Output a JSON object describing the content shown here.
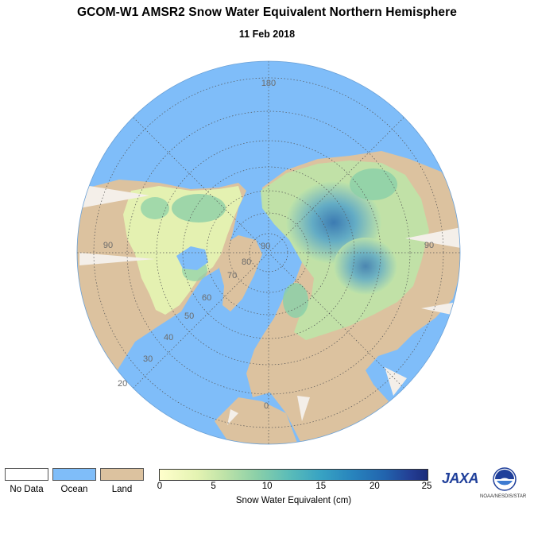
{
  "title": "GCOM-W1 AMSR2 Snow Water Equivalent Northern Hemisphere",
  "subtitle": "11 Feb 2018",
  "map": {
    "colors": {
      "ocean": "#7fbdf9",
      "land": "#dcc29f",
      "no_data": "#ffffff"
    },
    "longitude_labels": [
      "180",
      "90",
      "0",
      "90"
    ],
    "latitude_labels": [
      "90",
      "80",
      "70",
      "60",
      "50",
      "40",
      "30",
      "20"
    ]
  },
  "legend": {
    "categories": [
      {
        "label": "No Data",
        "color": "#ffffff"
      },
      {
        "label": "Ocean",
        "color": "#7fbdf9"
      },
      {
        "label": "Land",
        "color": "#dcc29f"
      }
    ],
    "colorbar": {
      "title": "Snow Water Equivalent (cm)",
      "ticks": [
        "0",
        "5",
        "10",
        "15",
        "20",
        "25"
      ],
      "min": 0,
      "max": 25
    }
  },
  "logos": {
    "jaxa": "JAXA",
    "noaa_caption": "NOAA/NESDIS/STAR"
  }
}
